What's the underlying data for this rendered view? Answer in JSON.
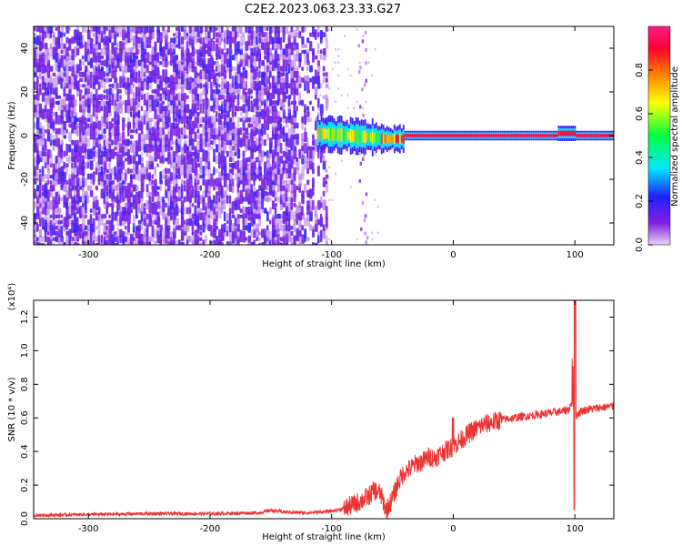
{
  "title": "C2E2.2023.063.23.33.G27",
  "chart_data": [
    {
      "type": "heatmap",
      "title": "",
      "xlabel": "Height of straight line (km)",
      "ylabel": "Frequency (Hz)",
      "xlim": [
        -345,
        132
      ],
      "ylim": [
        -50,
        50
      ],
      "xticks": [
        -300,
        -200,
        -100,
        0,
        100
      ],
      "yticks": [
        -40,
        -20,
        0,
        20,
        40
      ],
      "colorbar": {
        "label": "Normalized spectral amplitude",
        "range": [
          0.0,
          1.0
        ],
        "ticks": [
          "0.0",
          "0.2",
          "0.4",
          "0.6",
          "0.8"
        ],
        "tick_values": [
          0.0,
          0.2,
          0.4,
          0.6,
          0.8
        ],
        "colormap": [
          "#e8d6f5",
          "#8020e0",
          "#2020ff",
          "#00e8ff",
          "#00ff40",
          "#ffff00",
          "#ff8000",
          "#ff0030",
          "#ff1a8c"
        ]
      },
      "features": {
        "noise_region": [
          -345,
          -110
        ],
        "signal_band_center_hz": 0,
        "signal_onset_km": -112,
        "vertical_streak_km": -75
      }
    },
    {
      "type": "line",
      "title": "",
      "xlabel": "Height of straight line (km)",
      "ylabel": "SNR (10 * v/v)",
      "y_multiplier": "(x10⁴)",
      "xlim": [
        -345,
        132
      ],
      "ylim": [
        0,
        1.3
      ],
      "xticks": [
        -300,
        -200,
        -100,
        0,
        100
      ],
      "yticks": [
        "0.0",
        "0.2",
        "0.4",
        "0.6",
        "0.8",
        "1.0",
        "1.2"
      ],
      "ytick_values": [
        0.0,
        0.2,
        0.4,
        0.6,
        0.8,
        1.0,
        1.2
      ],
      "color": "#ee3333",
      "series": [
        {
          "x": [
            -345,
            -300,
            -250,
            -200,
            -160,
            -150,
            -140,
            -120,
            -110,
            -100,
            -90,
            -80,
            -70,
            -65,
            -60,
            -55,
            -50,
            -45,
            -40,
            -35,
            -30,
            -25,
            -20,
            -15,
            -10,
            -5,
            0,
            5,
            10,
            15,
            20,
            25,
            30,
            40,
            50,
            60,
            70,
            80,
            90,
            95,
            98,
            100,
            102,
            105,
            110,
            120,
            132
          ],
          "y": [
            0.02,
            0.025,
            0.03,
            0.03,
            0.035,
            0.05,
            0.04,
            0.035,
            0.04,
            0.045,
            0.06,
            0.09,
            0.13,
            0.17,
            0.15,
            0.05,
            0.12,
            0.22,
            0.28,
            0.3,
            0.33,
            0.34,
            0.37,
            0.36,
            0.39,
            0.41,
            0.43,
            0.46,
            0.49,
            0.52,
            0.54,
            0.56,
            0.57,
            0.59,
            0.6,
            0.61,
            0.62,
            0.63,
            0.64,
            0.65,
            0.7,
            0.6,
            0.62,
            0.64,
            0.65,
            0.66,
            0.67
          ]
        }
      ]
    }
  ]
}
